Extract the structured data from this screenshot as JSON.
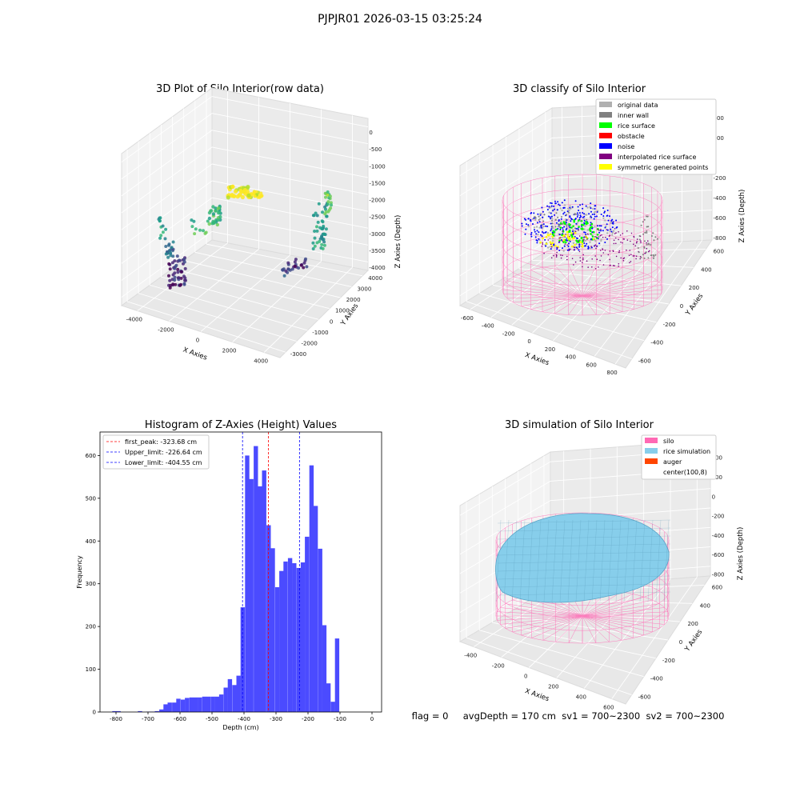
{
  "figure": {
    "suptitle": "PJPJR01 2026-03-15 03:25:24",
    "status_text": "flag = 0     avgDepth = 170 cm  sv1 = 700~2300  sv2 = 700~2300"
  },
  "chart_data": [
    {
      "type": "scatter",
      "panel": "top-left",
      "projection": "3d",
      "title": "3D Plot of Silo Interior(row data)",
      "xlabel": "X Axies",
      "ylabel": "Y Axies",
      "zlabel": "Z Axies (Depth)",
      "x_ticks": [
        "-4000",
        "-2000",
        "0",
        "2000",
        "4000"
      ],
      "y_ticks": [
        "-3000",
        "-2000",
        "-1000",
        "0",
        "1000",
        "2000",
        "3000",
        "4000"
      ],
      "z_ticks": [
        "0",
        "-500",
        "-1000",
        "-1500",
        "-2000",
        "-2500",
        "-3000",
        "-3500",
        "-4000"
      ],
      "colormap": "viridis",
      "grid": true
    },
    {
      "type": "scatter",
      "panel": "top-right",
      "projection": "3d",
      "title": "3D classify of Silo Interior",
      "xlabel": "X Axies",
      "ylabel": "Y Axies",
      "zlabel": "Z Axies (Depth)",
      "x_ticks": [
        "-600",
        "-400",
        "-200",
        "0",
        "200",
        "400",
        "600",
        "800"
      ],
      "y_ticks": [
        "-600",
        "-400",
        "-200",
        "0",
        "200",
        "400",
        "600"
      ],
      "z_ticks": [
        "400",
        "200",
        "0",
        "-200",
        "-400",
        "-600",
        "-800"
      ],
      "legend_position": "top-right",
      "legend": [
        {
          "label": "original data",
          "color": "#b0b0b0"
        },
        {
          "label": "inner wall",
          "color": "#808080"
        },
        {
          "label": "rice surface",
          "color": "#00ff00"
        },
        {
          "label": "obstacle",
          "color": "#ff0000"
        },
        {
          "label": "noise",
          "color": "#0000ff"
        },
        {
          "label": "interpolated rice surface",
          "color": "#800080"
        },
        {
          "label": "symmetric generated points",
          "color": "#ffff00"
        }
      ],
      "grid": true
    },
    {
      "type": "bar",
      "panel": "bottom-left",
      "title": "Histogram of Z-Axies (Height) Values",
      "xlabel": "Depth (cm)",
      "ylabel": "Frequency",
      "xlim": [
        -850,
        30
      ],
      "ylim": [
        0,
        655
      ],
      "x_ticks": [
        -800,
        -700,
        -600,
        -500,
        -400,
        -300,
        -200,
        -100,
        0
      ],
      "y_ticks": [
        0,
        100,
        200,
        300,
        400,
        500,
        600
      ],
      "bin_width": 13.4,
      "bins": [
        {
          "x": -805,
          "value": 2
        },
        {
          "x": -792,
          "value": 2
        },
        {
          "x": -725,
          "value": 2
        },
        {
          "x": -698,
          "value": 1
        },
        {
          "x": -685,
          "value": 1
        },
        {
          "x": -672,
          "value": 2
        },
        {
          "x": -658,
          "value": 6
        },
        {
          "x": -645,
          "value": 18
        },
        {
          "x": -632,
          "value": 22
        },
        {
          "x": -618,
          "value": 22
        },
        {
          "x": -605,
          "value": 31
        },
        {
          "x": -591,
          "value": 29
        },
        {
          "x": -578,
          "value": 33
        },
        {
          "x": -564,
          "value": 34
        },
        {
          "x": -551,
          "value": 34
        },
        {
          "x": -538,
          "value": 34
        },
        {
          "x": -524,
          "value": 36
        },
        {
          "x": -511,
          "value": 36
        },
        {
          "x": -497,
          "value": 36
        },
        {
          "x": -484,
          "value": 36
        },
        {
          "x": -471,
          "value": 41
        },
        {
          "x": -457,
          "value": 57
        },
        {
          "x": -444,
          "value": 77
        },
        {
          "x": -430,
          "value": 63
        },
        {
          "x": -417,
          "value": 85
        },
        {
          "x": -404,
          "value": 245
        },
        {
          "x": -390,
          "value": 600
        },
        {
          "x": -377,
          "value": 545
        },
        {
          "x": -363,
          "value": 622
        },
        {
          "x": -350,
          "value": 528
        },
        {
          "x": -337,
          "value": 565
        },
        {
          "x": -323,
          "value": 437
        },
        {
          "x": -310,
          "value": 383
        },
        {
          "x": -296,
          "value": 292
        },
        {
          "x": -283,
          "value": 330
        },
        {
          "x": -270,
          "value": 352
        },
        {
          "x": -256,
          "value": 360
        },
        {
          "x": -243,
          "value": 348
        },
        {
          "x": -229,
          "value": 337
        },
        {
          "x": -216,
          "value": 350
        },
        {
          "x": -203,
          "value": 410
        },
        {
          "x": -189,
          "value": 577
        },
        {
          "x": -176,
          "value": 482
        },
        {
          "x": -162,
          "value": 382
        },
        {
          "x": -149,
          "value": 203
        },
        {
          "x": -136,
          "value": 67
        },
        {
          "x": -122,
          "value": 24
        },
        {
          "x": -109,
          "value": 172
        }
      ],
      "vlines": [
        {
          "label": "first_peak: -323.68 cm",
          "x": -323.68,
          "color": "#ff0000",
          "style": "dashed"
        },
        {
          "label": "Upper_limit: -226.64 cm",
          "x": -226.64,
          "color": "#0000ff",
          "style": "dashed"
        },
        {
          "label": "Lower_limit: -404.55 cm",
          "x": -404.55,
          "color": "#0000ff",
          "style": "dashed"
        }
      ],
      "bar_color": "#4b4bff",
      "legend_position": "top-left",
      "grid": false
    },
    {
      "type": "surface",
      "panel": "bottom-right",
      "projection": "3d",
      "title": "3D simulation of Silo Interior",
      "xlabel": "X Axies",
      "ylabel": "Y Axies",
      "zlabel": "Z Axies (Depth)",
      "x_ticks": [
        "-400",
        "-200",
        "0",
        "200",
        "400",
        "600"
      ],
      "y_ticks": [
        "-600",
        "-400",
        "-200",
        "0",
        "200",
        "400",
        "600"
      ],
      "z_ticks": [
        "400",
        "200",
        "0",
        "-200",
        "-400",
        "-600",
        "-800"
      ],
      "legend_position": "top-right",
      "legend": [
        {
          "label": "silo",
          "color": "#ff69b4"
        },
        {
          "label": "rice simulation",
          "color": "#87ceeb"
        },
        {
          "label": "auger",
          "color": "#ff4500"
        },
        {
          "label": "center(100,8)",
          "color": ""
        }
      ],
      "grid": true
    }
  ]
}
